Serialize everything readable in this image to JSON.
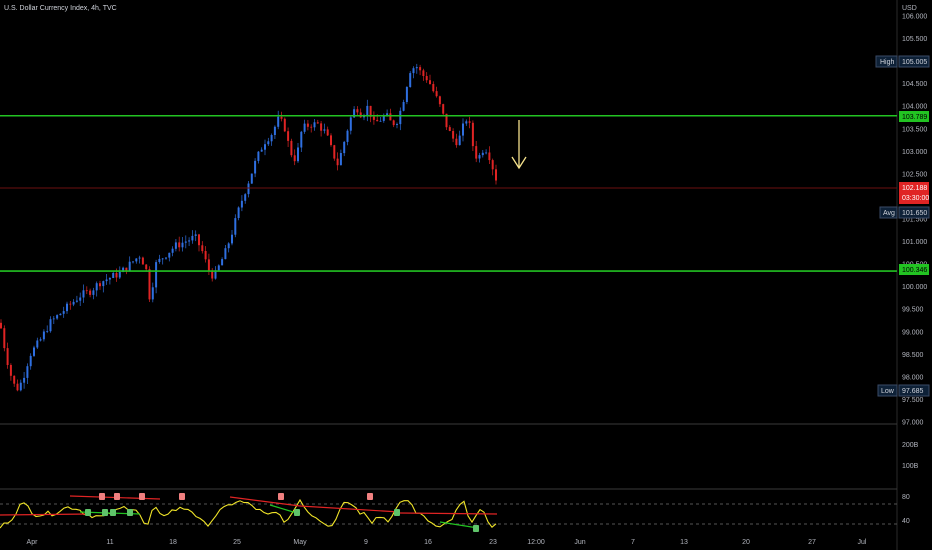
{
  "header": {
    "title": "U.S. Dollar Currency Index, 4h, TVC"
  },
  "price_axis": {
    "currency": "USD",
    "ticks": [
      "106.000",
      "105.500",
      "105.000",
      "104.500",
      "104.000",
      "103.500",
      "103.000",
      "102.500",
      "102.000",
      "101.500",
      "101.000",
      "100.500",
      "100.000",
      "99.500",
      "99.000",
      "98.500",
      "98.000",
      "97.500",
      "97.000"
    ],
    "volume_ticks": [
      "200B",
      "100B"
    ],
    "indicator_ticks": [
      "80",
      "40"
    ]
  },
  "tags": {
    "high": {
      "label": "High",
      "value": "105.005"
    },
    "resistance": {
      "value": "103.789"
    },
    "last": {
      "value": "102.188",
      "countdown": "03:30:00"
    },
    "avg": {
      "label": "Avg",
      "value": "101.650"
    },
    "support": {
      "value": "100.346"
    },
    "low": {
      "label": "Low",
      "value": "97.685"
    }
  },
  "time_axis": [
    "Apr",
    "11",
    "18",
    "25",
    "May",
    "9",
    "16",
    "23",
    "12:00",
    "Jun",
    "7",
    "13",
    "20",
    "27",
    "Jul"
  ],
  "colors": {
    "up": "#2f6fe0",
    "down": "#e02424",
    "level": "#22c322",
    "last_line": "#6b0f0f",
    "arrow": "#f5e28c",
    "oscillator": "#f0e428",
    "background": "#000000",
    "grid": "#1e1e1e"
  },
  "icons": [
    "down-arrow-icon"
  ],
  "chart_data": {
    "type": "candlestick",
    "title": "U.S. Dollar Currency Index, 4h, TVC",
    "ylim": [
      96.8,
      106.1
    ],
    "levels": [
      103.789,
      100.346
    ],
    "last_price": 102.188,
    "high": 105.005,
    "low": 97.685,
    "x_labels": [
      "Apr",
      "11",
      "18",
      "25",
      "May",
      "9",
      "16",
      "23",
      "12:00",
      "Jun",
      "7",
      "13",
      "20",
      "27",
      "Jul"
    ],
    "price_path": [
      [
        0,
        99.2
      ],
      [
        5,
        98.6
      ],
      [
        10,
        98.1
      ],
      [
        16,
        97.7
      ],
      [
        22,
        97.9
      ],
      [
        30,
        98.5
      ],
      [
        40,
        98.8
      ],
      [
        50,
        99.2
      ],
      [
        60,
        99.4
      ],
      [
        70,
        99.6
      ],
      [
        80,
        99.8
      ],
      [
        90,
        99.9
      ],
      [
        100,
        100.1
      ],
      [
        110,
        100.2
      ],
      [
        120,
        100.3
      ],
      [
        130,
        100.5
      ],
      [
        140,
        100.7
      ],
      [
        146,
        100.4
      ],
      [
        150,
        99.7
      ],
      [
        156,
        100.5
      ],
      [
        165,
        100.7
      ],
      [
        175,
        100.9
      ],
      [
        185,
        101.0
      ],
      [
        195,
        101.1
      ],
      [
        202,
        100.8
      ],
      [
        208,
        100.4
      ],
      [
        214,
        100.2
      ],
      [
        220,
        100.5
      ],
      [
        226,
        100.8
      ],
      [
        232,
        101.2
      ],
      [
        240,
        101.8
      ],
      [
        248,
        102.3
      ],
      [
        256,
        102.8
      ],
      [
        264,
        103.2
      ],
      [
        272,
        103.4
      ],
      [
        278,
        103.7
      ],
      [
        284,
        103.6
      ],
      [
        290,
        103.0
      ],
      [
        296,
        102.8
      ],
      [
        302,
        103.5
      ],
      [
        310,
        103.6
      ],
      [
        318,
        103.6
      ],
      [
        326,
        103.4
      ],
      [
        332,
        103.0
      ],
      [
        338,
        102.7
      ],
      [
        344,
        103.2
      ],
      [
        350,
        103.7
      ],
      [
        356,
        104.0
      ],
      [
        362,
        103.8
      ],
      [
        368,
        104.0
      ],
      [
        374,
        103.6
      ],
      [
        380,
        103.7
      ],
      [
        386,
        103.8
      ],
      [
        392,
        103.6
      ],
      [
        398,
        103.7
      ],
      [
        404,
        104.2
      ],
      [
        410,
        104.8
      ],
      [
        416,
        104.9
      ],
      [
        422,
        104.7
      ],
      [
        428,
        104.6
      ],
      [
        434,
        104.3
      ],
      [
        440,
        104.0
      ],
      [
        446,
        103.6
      ],
      [
        452,
        103.3
      ],
      [
        458,
        103.2
      ],
      [
        464,
        103.6
      ],
      [
        468,
        103.8
      ],
      [
        472,
        103.2
      ],
      [
        476,
        102.9
      ],
      [
        480,
        102.9
      ],
      [
        484,
        103.1
      ],
      [
        488,
        103.0
      ],
      [
        492,
        102.7
      ],
      [
        496,
        102.4
      ],
      [
        499,
        102.188
      ]
    ]
  }
}
